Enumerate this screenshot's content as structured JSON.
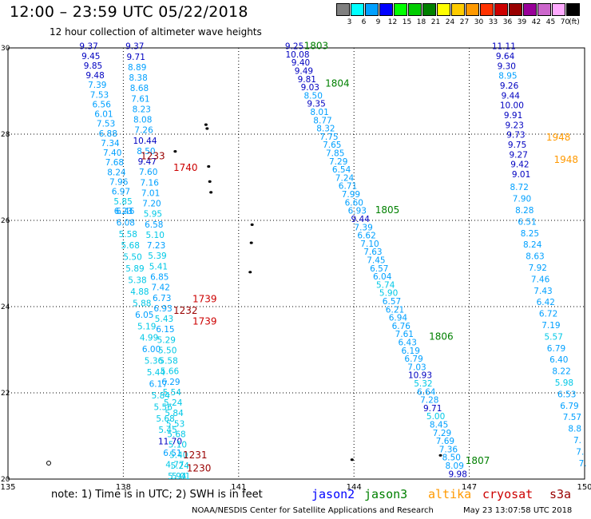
{
  "header": {
    "title": "12:00 – 23:59 UTC 05/22/2018",
    "subtitle": "12 hour collection of altimeter wave heights"
  },
  "legend": {
    "unit": "(ft)",
    "bins": [
      {
        "label": "3",
        "color": "#808080"
      },
      {
        "label": "6",
        "color": "#00ffff"
      },
      {
        "label": "9",
        "color": "#00a0ff"
      },
      {
        "label": "12",
        "color": "#0000ff"
      },
      {
        "label": "15",
        "color": "#00ff00"
      },
      {
        "label": "18",
        "color": "#00cc00"
      },
      {
        "label": "21",
        "color": "#008000"
      },
      {
        "label": "24",
        "color": "#ffff00"
      },
      {
        "label": "27",
        "color": "#ffcc00"
      },
      {
        "label": "30",
        "color": "#ff9900"
      },
      {
        "label": "33",
        "color": "#ff3300"
      },
      {
        "label": "36",
        "color": "#cc0000"
      },
      {
        "label": "39",
        "color": "#990000"
      },
      {
        "label": "42",
        "color": "#990099"
      },
      {
        "label": "45",
        "color": "#cc66cc"
      },
      {
        "label": "70",
        "color": "#ffaaff"
      },
      {
        "label": "",
        "color": "#000000"
      }
    ]
  },
  "axes": {
    "lon_ticks": [
      "135",
      "138",
      "141",
      "144",
      "147",
      "150"
    ],
    "lat_ticks": [
      "20",
      "22",
      "24",
      "26",
      "28",
      "30"
    ]
  },
  "colors": {
    "jason2": "#0000ff",
    "jason3": "#008000",
    "altika": "#ff9900",
    "cryosat": "#cc0000",
    "s3a": "#990000",
    "swh_light": "#00c8e6",
    "swh_mid": "#00a0ff",
    "swh_dark": "#0000c0"
  },
  "tracks": [
    {
      "name": "track-a",
      "start": {
        "lon": 137.1,
        "lat": 29.97
      },
      "end": {
        "lon": 138.05,
        "lat": 26.15
      },
      "values": [
        {
          "v": "9.37",
          "c": "swh_dark"
        },
        {
          "v": "9.45",
          "c": "swh_dark"
        },
        {
          "v": "9.85",
          "c": "swh_dark"
        },
        {
          "v": "9.48",
          "c": "swh_dark"
        },
        {
          "v": "7.39",
          "c": "swh_mid"
        },
        {
          "v": "7.53",
          "c": "swh_mid"
        },
        {
          "v": "6.56",
          "c": "swh_mid"
        },
        {
          "v": "6.01",
          "c": "swh_mid"
        },
        {
          "v": "7.53",
          "c": "swh_mid"
        },
        {
          "v": "6.88",
          "c": "swh_mid"
        },
        {
          "v": "7.34",
          "c": "swh_mid"
        },
        {
          "v": "7.40",
          "c": "swh_mid"
        },
        {
          "v": "7.68",
          "c": "swh_mid"
        },
        {
          "v": "8.24",
          "c": "swh_mid"
        },
        {
          "v": "7.96",
          "c": "swh_mid"
        },
        {
          "v": "6.97",
          "c": "swh_mid"
        },
        {
          "v": "5.85",
          "c": "swh_light"
        },
        {
          "v": "6.46",
          "c": "swh_mid"
        }
      ]
    },
    {
      "name": "track-b",
      "start": {
        "lon": 138.0,
        "lat": 26.15
      },
      "end": {
        "lon": 139.4,
        "lat": 20.0
      },
      "values": [
        {
          "v": "6.23",
          "c": "swh_mid"
        },
        {
          "v": "6.08",
          "c": "swh_mid"
        },
        {
          "v": "5.58",
          "c": "swh_light"
        },
        {
          "v": "5.68",
          "c": "swh_light"
        },
        {
          "v": "5.50",
          "c": "swh_light"
        },
        {
          "v": "5.89",
          "c": "swh_light"
        },
        {
          "v": "5.38",
          "c": "swh_light"
        },
        {
          "v": "4.88",
          "c": "swh_light"
        },
        {
          "v": "5.88",
          "c": "swh_light"
        },
        {
          "v": "6.05",
          "c": "swh_mid"
        },
        {
          "v": "5.19",
          "c": "swh_light"
        },
        {
          "v": "4.99",
          "c": "swh_light"
        },
        {
          "v": "6.00",
          "c": "swh_mid"
        },
        {
          "v": "5.36",
          "c": "swh_light"
        },
        {
          "v": "5.44",
          "c": "swh_light"
        },
        {
          "v": "6.17",
          "c": "swh_mid"
        },
        {
          "v": "5.84",
          "c": "swh_light"
        },
        {
          "v": "5.56",
          "c": "swh_light"
        },
        {
          "v": "5.68",
          "c": "swh_light"
        },
        {
          "v": "5.45",
          "c": "swh_light"
        },
        {
          "v": "11.70",
          "c": "swh_dark"
        },
        {
          "v": "6.51",
          "c": "swh_mid"
        },
        {
          "v": "4.77",
          "c": "swh_light"
        },
        {
          "v": "5.94",
          "c": "swh_light"
        }
      ]
    },
    {
      "name": "track-c",
      "start": {
        "lon": 138.3,
        "lat": 29.97
      },
      "end": {
        "lon": 139.5,
        "lat": 20.0
      },
      "values": [
        {
          "v": "9.37",
          "c": "swh_dark"
        },
        {
          "v": "9.71",
          "c": "swh_dark"
        },
        {
          "v": "8.89",
          "c": "swh_mid"
        },
        {
          "v": "8.38",
          "c": "swh_mid"
        },
        {
          "v": "8.68",
          "c": "swh_mid"
        },
        {
          "v": "7.61",
          "c": "swh_mid"
        },
        {
          "v": "8.23",
          "c": "swh_mid"
        },
        {
          "v": "8.08",
          "c": "swh_mid"
        },
        {
          "v": "7.26",
          "c": "swh_mid"
        },
        {
          "v": "10.44",
          "c": "swh_dark"
        },
        {
          "v": "8.50",
          "c": "swh_mid"
        },
        {
          "v": "9.47",
          "c": "swh_dark"
        },
        {
          "v": "7.60",
          "c": "swh_mid"
        },
        {
          "v": "7.16",
          "c": "swh_mid"
        },
        {
          "v": "7.01",
          "c": "swh_mid"
        },
        {
          "v": "7.20",
          "c": "swh_mid"
        },
        {
          "v": "5.95",
          "c": "swh_light"
        },
        {
          "v": "6.58",
          "c": "swh_mid"
        },
        {
          "v": "5.10",
          "c": "swh_light"
        },
        {
          "v": "7.23",
          "c": "swh_mid"
        },
        {
          "v": "5.39",
          "c": "swh_light"
        },
        {
          "v": "5.41",
          "c": "swh_light"
        },
        {
          "v": "6.85",
          "c": "swh_mid"
        },
        {
          "v": "7.42",
          "c": "swh_mid"
        },
        {
          "v": "6.73",
          "c": "swh_mid"
        },
        {
          "v": "6.93",
          "c": "swh_mid"
        },
        {
          "v": "5.43",
          "c": "swh_light"
        },
        {
          "v": "6.15",
          "c": "swh_mid"
        },
        {
          "v": "5.29",
          "c": "swh_light"
        },
        {
          "v": "5.50",
          "c": "swh_light"
        },
        {
          "v": "5.58",
          "c": "swh_light"
        },
        {
          "v": "5.66",
          "c": "swh_light"
        },
        {
          "v": "6.29",
          "c": "swh_mid"
        },
        {
          "v": "5.54",
          "c": "swh_light"
        },
        {
          "v": "5.24",
          "c": "swh_light"
        },
        {
          "v": "5.84",
          "c": "swh_light"
        },
        {
          "v": "5.53",
          "c": "swh_light"
        },
        {
          "v": "5.68",
          "c": "swh_light"
        },
        {
          "v": "5.10",
          "c": "swh_light"
        },
        {
          "v": "5.40",
          "c": "swh_light"
        },
        {
          "v": "5.24",
          "c": "swh_light"
        },
        {
          "v": "5.01",
          "c": "swh_light"
        }
      ]
    },
    {
      "name": "track-d",
      "start": {
        "lon": 142.45,
        "lat": 29.97
      },
      "end": {
        "lon": 146.7,
        "lat": 20.05
      },
      "values": [
        {
          "v": "9.25",
          "c": "swh_dark"
        },
        {
          "v": "10.08",
          "c": "swh_dark"
        },
        {
          "v": "9.40",
          "c": "swh_dark"
        },
        {
          "v": "9.49",
          "c": "swh_dark"
        },
        {
          "v": "9.81",
          "c": "swh_dark"
        },
        {
          "v": "9.03",
          "c": "swh_dark"
        },
        {
          "v": "8.50",
          "c": "swh_mid"
        },
        {
          "v": "9.35",
          "c": "swh_dark"
        },
        {
          "v": "8.01",
          "c": "swh_mid"
        },
        {
          "v": "8.77",
          "c": "swh_mid"
        },
        {
          "v": "8.32",
          "c": "swh_mid"
        },
        {
          "v": "7.75",
          "c": "swh_mid"
        },
        {
          "v": "7.65",
          "c": "swh_mid"
        },
        {
          "v": "7.85",
          "c": "swh_mid"
        },
        {
          "v": "7.29",
          "c": "swh_mid"
        },
        {
          "v": "6.54",
          "c": "swh_mid"
        },
        {
          "v": "7.24",
          "c": "swh_mid"
        },
        {
          "v": "6.71",
          "c": "swh_mid"
        },
        {
          "v": "7.99",
          "c": "swh_mid"
        },
        {
          "v": "6.60",
          "c": "swh_mid"
        },
        {
          "v": "6.93",
          "c": "swh_mid"
        },
        {
          "v": "9.44",
          "c": "swh_dark"
        },
        {
          "v": "7.39",
          "c": "swh_mid"
        },
        {
          "v": "6.62",
          "c": "swh_mid"
        },
        {
          "v": "7.10",
          "c": "swh_mid"
        },
        {
          "v": "7.63",
          "c": "swh_mid"
        },
        {
          "v": "7.45",
          "c": "swh_mid"
        },
        {
          "v": "6.57",
          "c": "swh_mid"
        },
        {
          "v": "6.04",
          "c": "swh_mid"
        },
        {
          "v": "5.74",
          "c": "swh_light"
        },
        {
          "v": "5.90",
          "c": "swh_light"
        },
        {
          "v": "6.57",
          "c": "swh_mid"
        },
        {
          "v": "6.21",
          "c": "swh_mid"
        },
        {
          "v": "6.94",
          "c": "swh_mid"
        },
        {
          "v": "6.76",
          "c": "swh_mid"
        },
        {
          "v": "7.61",
          "c": "swh_mid"
        },
        {
          "v": "6.43",
          "c": "swh_mid"
        },
        {
          "v": "6.19",
          "c": "swh_mid"
        },
        {
          "v": "6.79",
          "c": "swh_mid"
        },
        {
          "v": "7.03",
          "c": "swh_mid"
        },
        {
          "v": "10.93",
          "c": "swh_dark"
        },
        {
          "v": "5.32",
          "c": "swh_light"
        },
        {
          "v": "6.64",
          "c": "swh_mid"
        },
        {
          "v": "7.28",
          "c": "swh_mid"
        },
        {
          "v": "9.71",
          "c": "swh_dark"
        },
        {
          "v": "5.00",
          "c": "swh_light"
        },
        {
          "v": "8.45",
          "c": "swh_mid"
        },
        {
          "v": "7.29",
          "c": "swh_mid"
        },
        {
          "v": "7.69",
          "c": "swh_mid"
        },
        {
          "v": "7.36",
          "c": "swh_mid"
        },
        {
          "v": "8.50",
          "c": "swh_mid"
        },
        {
          "v": "8.09",
          "c": "swh_mid"
        },
        {
          "v": "9.98",
          "c": "swh_dark"
        }
      ]
    },
    {
      "name": "track-e",
      "start": {
        "lon": 147.9,
        "lat": 29.97
      },
      "end": {
        "lon": 148.35,
        "lat": 27.0
      },
      "values": [
        {
          "v": "11.11",
          "c": "swh_dark"
        },
        {
          "v": "9.64",
          "c": "swh_dark"
        },
        {
          "v": "9.30",
          "c": "swh_dark"
        },
        {
          "v": "8.95",
          "c": "swh_mid"
        },
        {
          "v": "9.26",
          "c": "swh_dark"
        },
        {
          "v": "9.44",
          "c": "swh_dark"
        },
        {
          "v": "10.00",
          "c": "swh_dark"
        },
        {
          "v": "9.91",
          "c": "swh_dark"
        },
        {
          "v": "9.23",
          "c": "swh_dark"
        },
        {
          "v": "9.73",
          "c": "swh_dark"
        },
        {
          "v": "9.75",
          "c": "swh_dark"
        },
        {
          "v": "9.27",
          "c": "swh_dark"
        },
        {
          "v": "9.42",
          "c": "swh_dark"
        },
        {
          "v": "9.01",
          "c": "swh_dark"
        }
      ]
    },
    {
      "name": "track-f",
      "start": {
        "lon": 148.3,
        "lat": 26.7
      },
      "end": {
        "lon": 149.95,
        "lat": 20.3
      },
      "values": [
        {
          "v": "8.72",
          "c": "swh_mid"
        },
        {
          "v": "7.90",
          "c": "swh_mid"
        },
        {
          "v": "8.28",
          "c": "swh_mid"
        },
        {
          "v": "6.51",
          "c": "swh_mid"
        },
        {
          "v": "8.25",
          "c": "swh_mid"
        },
        {
          "v": "8.24",
          "c": "swh_mid"
        },
        {
          "v": "8.63",
          "c": "swh_mid"
        },
        {
          "v": "7.92",
          "c": "swh_mid"
        },
        {
          "v": "7.46",
          "c": "swh_mid"
        },
        {
          "v": "7.43",
          "c": "swh_mid"
        },
        {
          "v": "6.42",
          "c": "swh_mid"
        },
        {
          "v": "6.72",
          "c": "swh_mid"
        },
        {
          "v": "7.19",
          "c": "swh_mid"
        },
        {
          "v": "5.57",
          "c": "swh_light"
        },
        {
          "v": "6.79",
          "c": "swh_mid"
        },
        {
          "v": "6.40",
          "c": "swh_mid"
        },
        {
          "v": "8.22",
          "c": "swh_mid"
        },
        {
          "v": "5.98",
          "c": "swh_light"
        },
        {
          "v": "6.53",
          "c": "swh_mid"
        },
        {
          "v": "6.79",
          "c": "swh_mid"
        },
        {
          "v": "7.57",
          "c": "swh_mid"
        },
        {
          "v": "8.8",
          "c": "swh_mid"
        },
        {
          "v": "7.",
          "c": "swh_mid"
        },
        {
          "v": "7.",
          "c": "swh_mid"
        },
        {
          "v": "7.",
          "c": "swh_mid"
        }
      ]
    }
  ],
  "pass_times": [
    {
      "text": "1803",
      "lon": 142.7,
      "lat": 29.97,
      "c": "jason3"
    },
    {
      "text": "1804",
      "lon": 143.25,
      "lat": 29.1,
      "c": "jason3"
    },
    {
      "text": "1805",
      "lon": 144.55,
      "lat": 26.17,
      "c": "jason3"
    },
    {
      "text": "1806",
      "lon": 145.95,
      "lat": 23.23,
      "c": "jason3"
    },
    {
      "text": "1807",
      "lon": 146.9,
      "lat": 20.35,
      "c": "jason3"
    },
    {
      "text": "1948",
      "lon": 149.0,
      "lat": 27.85,
      "c": "altika"
    },
    {
      "text": "1948",
      "lon": 149.2,
      "lat": 27.33,
      "c": "altika"
    },
    {
      "text": "1740",
      "lon": 139.3,
      "lat": 27.15,
      "c": "cryosat"
    },
    {
      "text": "1739",
      "lon": 139.8,
      "lat": 24.1,
      "c": "cryosat"
    },
    {
      "text": "1739",
      "lon": 139.8,
      "lat": 23.58,
      "c": "cryosat"
    },
    {
      "text": "1233",
      "lon": 138.45,
      "lat": 27.42,
      "c": "s3a"
    },
    {
      "text": "1232",
      "lon": 139.3,
      "lat": 23.83,
      "c": "s3a"
    },
    {
      "text": "1231",
      "lon": 139.55,
      "lat": 20.48,
      "c": "s3a"
    },
    {
      "text": "1230",
      "lon": 139.65,
      "lat": 20.18,
      "c": "s3a"
    }
  ],
  "land": [
    {
      "lon": 140.15,
      "lat": 28.22
    },
    {
      "lon": 140.18,
      "lat": 28.13
    },
    {
      "lon": 139.35,
      "lat": 27.6
    },
    {
      "lon": 140.22,
      "lat": 27.25
    },
    {
      "lon": 140.25,
      "lat": 26.9
    },
    {
      "lon": 140.28,
      "lat": 26.65
    },
    {
      "lon": 141.35,
      "lat": 25.9
    },
    {
      "lon": 141.33,
      "lat": 25.48
    },
    {
      "lon": 141.3,
      "lat": 24.8
    },
    {
      "lon": 146.25,
      "lat": 20.55
    },
    {
      "lon": 143.95,
      "lat": 20.45
    }
  ],
  "footer": {
    "note": "note: 1) Time is in UTC; 2) SWH is in feet",
    "missions": [
      {
        "label": "jason2",
        "c": "jason2"
      },
      {
        "label": "jason3",
        "c": "jason3"
      },
      {
        "label": "altika",
        "c": "altika"
      },
      {
        "label": "cryosat",
        "c": "cryosat"
      },
      {
        "label": "s3a",
        "c": "s3a"
      }
    ],
    "credit": "NOAA/NESDIS Center for Satellite Applications and Research",
    "timestamp": "May 23 13:07:58 UTC 2018"
  }
}
